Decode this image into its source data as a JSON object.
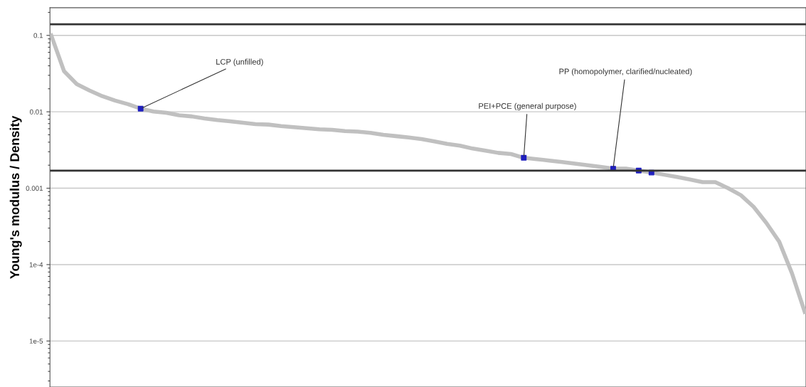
{
  "chart_data": {
    "type": "line",
    "ylabel": "Young's modulus / Density",
    "categories": [
      null,
      null,
      null,
      null,
      null,
      null,
      null,
      null,
      null,
      null,
      null,
      null,
      null,
      null,
      null,
      null,
      null,
      null,
      null,
      null,
      null,
      null,
      null,
      null,
      null,
      null,
      null,
      null,
      null,
      null,
      null,
      null,
      null,
      null,
      null,
      null,
      null,
      null,
      null,
      null,
      null,
      null,
      null,
      null,
      null,
      null,
      null,
      null,
      null,
      null,
      null,
      null,
      null,
      null,
      null,
      null,
      null,
      null,
      null,
      null
    ],
    "series": [
      {
        "color": "#c0c0c0",
        "values": [
          0.1,
          0.034,
          0.023,
          0.019,
          0.016,
          0.014,
          0.0126,
          0.011,
          0.0101,
          0.0097,
          0.009,
          0.0087,
          0.0082,
          0.0078,
          0.0075,
          0.0072,
          0.0069,
          0.0068,
          0.0065,
          0.0063,
          0.0061,
          0.0059,
          0.0058,
          0.0056,
          0.0055,
          0.0053,
          0.005,
          0.0048,
          0.0046,
          0.0044,
          0.0041,
          0.0038,
          0.0036,
          0.0033,
          0.0031,
          0.0029,
          0.0028,
          0.0025,
          0.0024,
          0.0023,
          0.0022,
          0.0021,
          0.002,
          0.0019,
          0.0018,
          0.0018,
          0.0017,
          0.0016,
          0.0015,
          0.0014,
          0.0013,
          0.0012,
          0.0012,
          0.001,
          0.00081,
          0.00057,
          0.00035,
          0.0002,
          7.7e-05,
          2.4e-05
        ]
      },
      {
        "type": "scatter",
        "color": "#1f1fbf",
        "marker": "square",
        "values": [
          null,
          null,
          null,
          null,
          null,
          null,
          null,
          0.011,
          null,
          null,
          null,
          null,
          null,
          null,
          null,
          null,
          null,
          null,
          null,
          null,
          null,
          null,
          null,
          null,
          null,
          null,
          null,
          null,
          null,
          null,
          null,
          null,
          null,
          null,
          null,
          null,
          null,
          0.0025,
          null,
          null,
          null,
          null,
          null,
          null,
          0.0018,
          null,
          0.0017,
          0.0016,
          null,
          null,
          null,
          null,
          null,
          null,
          null,
          null,
          null,
          null,
          null,
          null
        ]
      }
    ],
    "log": "y",
    "ylim": [
      2.5e-06,
      0.23
    ],
    "yticks": [
      0.1,
      0.01,
      0.001,
      {
        "value": 0.0001,
        "label": "1e-4"
      },
      {
        "value": 1e-05,
        "label": "1e-5"
      }
    ],
    "grid": "y",
    "ref_lines": [
      {
        "axis": "y",
        "value": 0.14,
        "color": "#333333"
      },
      {
        "axis": "y",
        "value": 0.0017,
        "color": "#333333"
      }
    ],
    "annotations": [
      "LCP (unfilled)",
      "PEI+PCE (general purpose)",
      "PP (homopolymer, clarified/nucleated)"
    ]
  }
}
